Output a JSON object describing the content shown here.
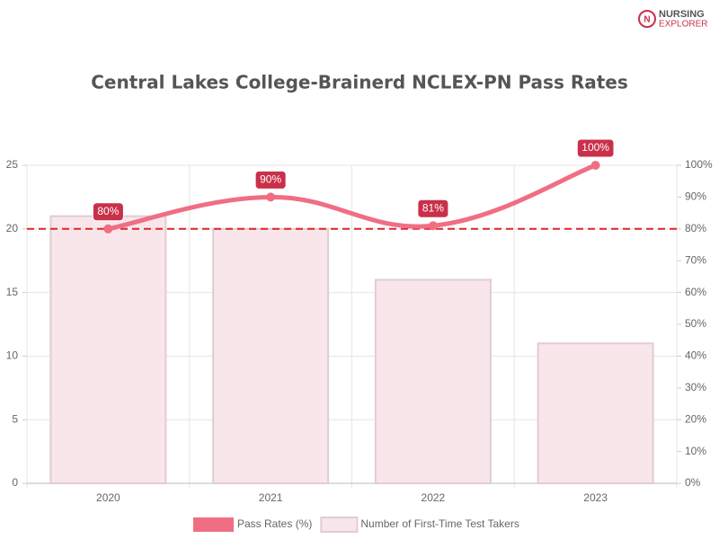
{
  "logo": {
    "line1": "NURSING",
    "line2": "EXPLORER"
  },
  "chart_data": {
    "type": "bar",
    "title": "Central Lakes College-Brainerd NCLEX-PN Pass Rates",
    "categories": [
      "2020",
      "2021",
      "2022",
      "2023"
    ],
    "series": [
      {
        "name": "Pass Rates (%)",
        "type": "line",
        "axis": "y2",
        "color": "#f06e84",
        "label_color": "#c9304a",
        "values": [
          80,
          90,
          81,
          100
        ],
        "value_labels": [
          "80%",
          "90%",
          "81%",
          "100%"
        ]
      },
      {
        "name": "Number of First-Time Test Takers",
        "type": "bar",
        "axis": "y",
        "color": "#f8e6ea",
        "border_color": "#e0cdd2",
        "values": [
          21,
          20,
          16,
          11
        ]
      }
    ],
    "ylim": [
      0,
      25
    ],
    "yticks": [
      0,
      5,
      10,
      15,
      20,
      25
    ],
    "y2lim": [
      0,
      100
    ],
    "y2ticks": [
      {
        "value": 0,
        "label": "0%"
      },
      {
        "value": 10,
        "label": "10%"
      },
      {
        "value": 20,
        "label": "20%"
      },
      {
        "value": 30,
        "label": "30%"
      },
      {
        "value": 40,
        "label": "40%"
      },
      {
        "value": 50,
        "label": "50%"
      },
      {
        "value": 60,
        "label": "60%"
      },
      {
        "value": 70,
        "label": "70%"
      },
      {
        "value": 80,
        "label": "80%"
      },
      {
        "value": 90,
        "label": "90%"
      },
      {
        "value": 100,
        "label": "100%"
      }
    ],
    "reference_line": {
      "value": 80,
      "axis": "y2",
      "color": "#e0242b"
    },
    "grid": true,
    "legend": "bottom"
  }
}
